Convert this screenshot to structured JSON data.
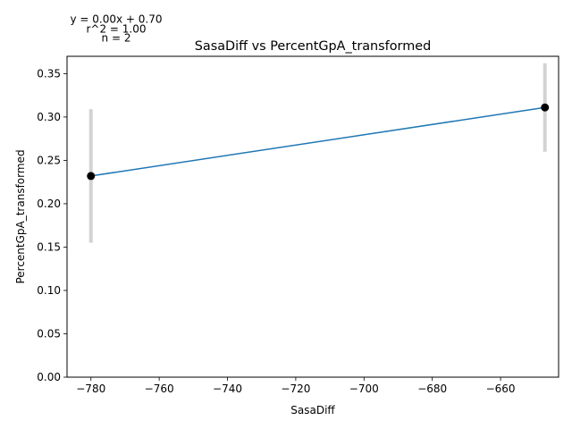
{
  "chart_data": {
    "type": "scatter",
    "title": "SasaDiff vs PercentGpA_transformed",
    "xlabel": "SasaDiff",
    "ylabel": "PercentGpA_transformed",
    "xlim": [
      -787,
      -643
    ],
    "ylim": [
      0.0,
      0.37
    ],
    "x_ticks": [
      -780,
      -760,
      -740,
      -720,
      -700,
      -680,
      -660
    ],
    "x_tick_labels": [
      "−780",
      "−760",
      "−740",
      "−720",
      "−700",
      "−680",
      "−660"
    ],
    "y_ticks": [
      0.0,
      0.05,
      0.1,
      0.15,
      0.2,
      0.25,
      0.3,
      0.35
    ],
    "y_tick_labels": [
      "0.00",
      "0.05",
      "0.10",
      "0.15",
      "0.20",
      "0.25",
      "0.30",
      "0.35"
    ],
    "points": [
      {
        "x": -780,
        "y": 0.232,
        "err_low": 0.155,
        "err_high": 0.309
      },
      {
        "x": -647,
        "y": 0.311,
        "err_low": 0.26,
        "err_high": 0.362
      }
    ],
    "fit_line": {
      "x": [
        -780,
        -647
      ],
      "y": [
        0.232,
        0.311
      ]
    },
    "annotations": [
      "y = 0.00x + 0.70",
      "r^2 = 1.00",
      "n = 2"
    ],
    "grid": false,
    "colors": {
      "line": "#1f77b4",
      "point": "#000000",
      "errorbar": "#d3d3d3",
      "axes": "#000000"
    }
  }
}
